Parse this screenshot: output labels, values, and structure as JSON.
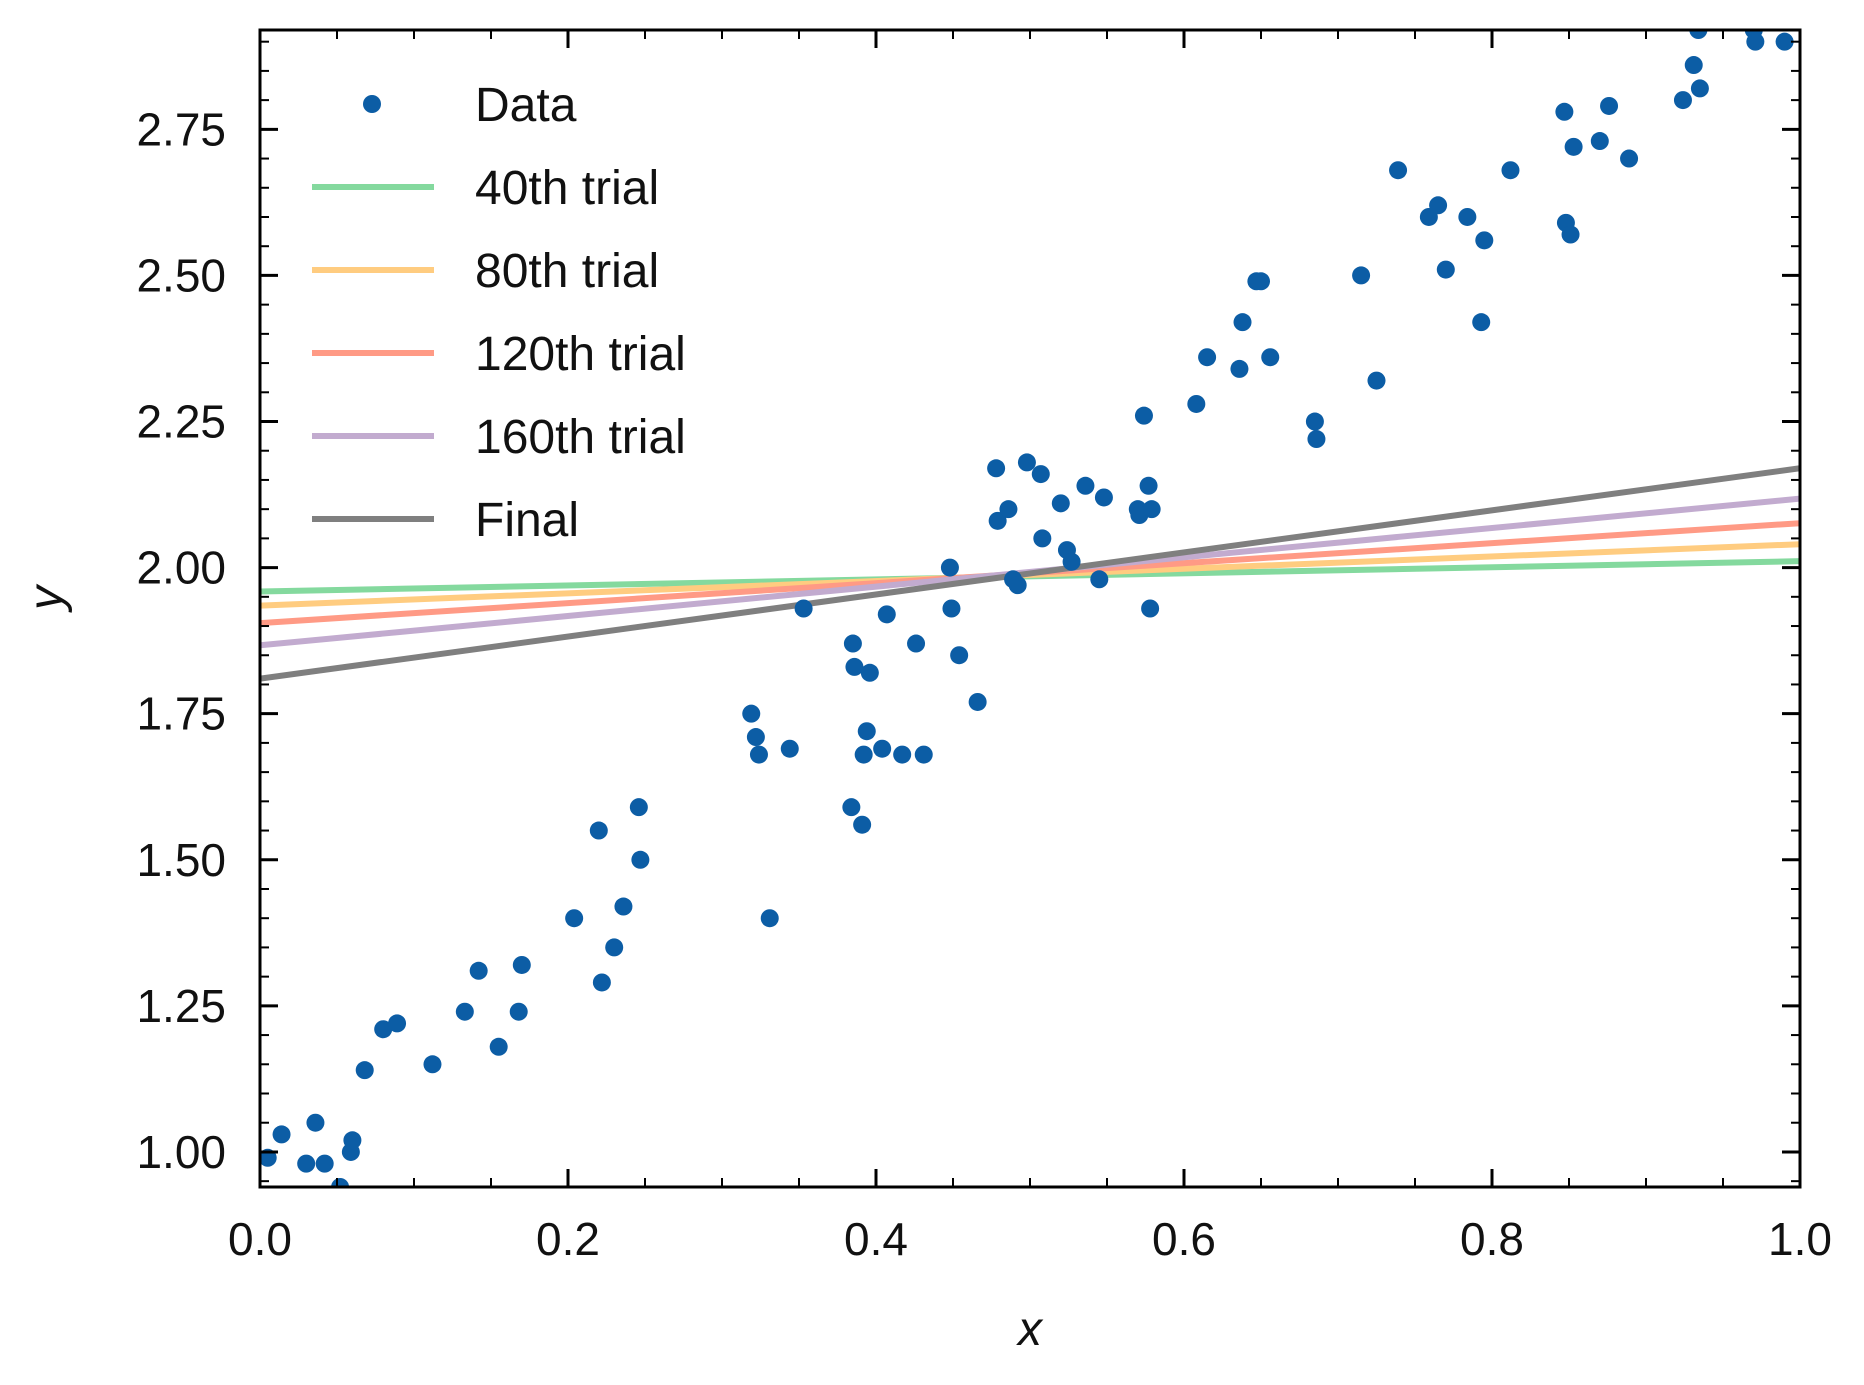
{
  "chart_data": {
    "type": "scatter",
    "xlabel": "x",
    "ylabel": "y",
    "xlim": [
      0.0,
      1.0
    ],
    "ylim": [
      0.94,
      2.92
    ],
    "x_ticks": [
      0.0,
      0.2,
      0.4,
      0.6,
      0.8,
      1.0
    ],
    "x_tick_labels": [
      "0.0",
      "0.2",
      "0.4",
      "0.6",
      "0.8",
      "1.0"
    ],
    "y_ticks": [
      1.0,
      1.25,
      1.5,
      1.75,
      2.0,
      2.25,
      2.5,
      2.75
    ],
    "y_tick_labels": [
      "1.00",
      "1.25",
      "1.50",
      "1.75",
      "2.00",
      "2.25",
      "2.50",
      "2.75"
    ],
    "ticks_direction": "in",
    "ticks_on_all_sides": true,
    "grid": false,
    "legend": {
      "placement": "top-left",
      "frame": false
    },
    "series": [
      {
        "name": "Data",
        "kind": "scatter",
        "color": "#0C5DA5",
        "points": [
          [
            0.005,
            0.99
          ],
          [
            0.014,
            1.03
          ],
          [
            0.03,
            0.98
          ],
          [
            0.036,
            1.05
          ],
          [
            0.042,
            0.98
          ],
          [
            0.052,
            0.94
          ],
          [
            0.059,
            1.0
          ],
          [
            0.06,
            1.02
          ],
          [
            0.068,
            1.14
          ],
          [
            0.08,
            1.21
          ],
          [
            0.089,
            1.22
          ],
          [
            0.112,
            1.15
          ],
          [
            0.133,
            1.24
          ],
          [
            0.142,
            1.31
          ],
          [
            0.155,
            1.18
          ],
          [
            0.168,
            1.24
          ],
          [
            0.17,
            1.32
          ],
          [
            0.204,
            1.4
          ],
          [
            0.22,
            1.55
          ],
          [
            0.222,
            1.29
          ],
          [
            0.23,
            1.35
          ],
          [
            0.236,
            1.42
          ],
          [
            0.246,
            1.59
          ],
          [
            0.247,
            1.5
          ],
          [
            0.319,
            1.75
          ],
          [
            0.322,
            1.71
          ],
          [
            0.324,
            1.68
          ],
          [
            0.331,
            1.4
          ],
          [
            0.344,
            1.69
          ],
          [
            0.353,
            1.93
          ],
          [
            0.384,
            1.59
          ],
          [
            0.385,
            1.87
          ],
          [
            0.386,
            1.83
          ],
          [
            0.391,
            1.56
          ],
          [
            0.392,
            1.68
          ],
          [
            0.394,
            1.72
          ],
          [
            0.396,
            1.82
          ],
          [
            0.404,
            1.69
          ],
          [
            0.407,
            1.92
          ],
          [
            0.417,
            1.68
          ],
          [
            0.426,
            1.87
          ],
          [
            0.431,
            1.68
          ],
          [
            0.448,
            2.0
          ],
          [
            0.449,
            1.93
          ],
          [
            0.454,
            1.85
          ],
          [
            0.466,
            1.77
          ],
          [
            0.478,
            2.17
          ],
          [
            0.479,
            2.08
          ],
          [
            0.486,
            2.1
          ],
          [
            0.489,
            1.98
          ],
          [
            0.492,
            1.97
          ],
          [
            0.498,
            2.18
          ],
          [
            0.507,
            2.16
          ],
          [
            0.508,
            2.05
          ],
          [
            0.52,
            2.11
          ],
          [
            0.524,
            2.03
          ],
          [
            0.527,
            2.01
          ],
          [
            0.536,
            2.14
          ],
          [
            0.545,
            1.98
          ],
          [
            0.548,
            2.12
          ],
          [
            0.57,
            2.1
          ],
          [
            0.571,
            2.09
          ],
          [
            0.574,
            2.26
          ],
          [
            0.577,
            2.14
          ],
          [
            0.578,
            1.93
          ],
          [
            0.579,
            2.1
          ],
          [
            0.608,
            2.28
          ],
          [
            0.615,
            2.36
          ],
          [
            0.636,
            2.34
          ],
          [
            0.638,
            2.42
          ],
          [
            0.647,
            2.49
          ],
          [
            0.65,
            2.49
          ],
          [
            0.656,
            2.36
          ],
          [
            0.685,
            2.25
          ],
          [
            0.686,
            2.22
          ],
          [
            0.715,
            2.5
          ],
          [
            0.725,
            2.32
          ],
          [
            0.739,
            2.68
          ],
          [
            0.759,
            2.6
          ],
          [
            0.765,
            2.62
          ],
          [
            0.77,
            2.51
          ],
          [
            0.784,
            2.6
          ],
          [
            0.793,
            2.42
          ],
          [
            0.795,
            2.56
          ],
          [
            0.812,
            2.68
          ],
          [
            0.847,
            2.78
          ],
          [
            0.848,
            2.59
          ],
          [
            0.851,
            2.57
          ],
          [
            0.853,
            2.72
          ],
          [
            0.87,
            2.73
          ],
          [
            0.876,
            2.79
          ],
          [
            0.889,
            2.7
          ],
          [
            0.924,
            2.8
          ],
          [
            0.931,
            2.86
          ],
          [
            0.934,
            2.92
          ],
          [
            0.935,
            2.82
          ],
          [
            0.97,
            2.92
          ],
          [
            0.971,
            2.9
          ],
          [
            0.99,
            2.9
          ]
        ]
      },
      {
        "name": "40th trial",
        "kind": "line",
        "color": "#84D99E",
        "x": [
          0.0,
          1.0
        ],
        "y": [
          1.959,
          2.011
        ]
      },
      {
        "name": "80th trial",
        "kind": "line",
        "color": "#FFCC80",
        "x": [
          0.0,
          1.0
        ],
        "y": [
          1.935,
          2.04
        ]
      },
      {
        "name": "120th trial",
        "kind": "line",
        "color": "#FF9A85",
        "x": [
          0.0,
          1.0
        ],
        "y": [
          1.905,
          2.076
        ]
      },
      {
        "name": "160th trial",
        "kind": "line",
        "color": "#C2ABCF",
        "x": [
          0.0,
          1.0
        ],
        "y": [
          1.867,
          2.118
        ]
      },
      {
        "name": "Final",
        "kind": "line",
        "color": "#7F7F7F",
        "x": [
          0.0,
          1.0
        ],
        "y": [
          1.81,
          2.17
        ]
      }
    ]
  }
}
